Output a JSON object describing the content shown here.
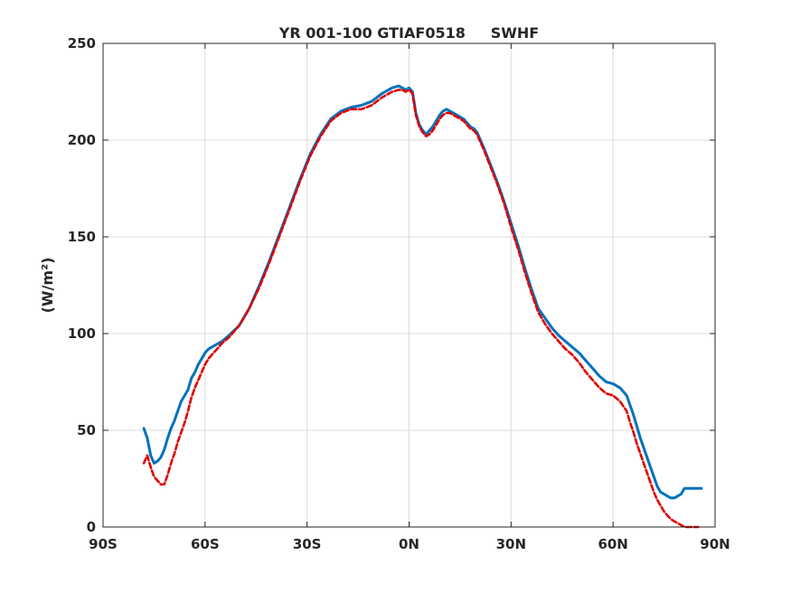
{
  "chart_data": {
    "type": "line",
    "title": "YR 001-100 GTIAF0518     SWHF",
    "xlabel": "",
    "ylabel": "(W/m²)",
    "xlim": [
      -90,
      90
    ],
    "ylim": [
      0,
      250
    ],
    "x_ticks": [
      -90,
      -60,
      -30,
      0,
      30,
      60,
      90
    ],
    "x_tick_labels": [
      "90S",
      "60S",
      "30S",
      "0N",
      "30N",
      "60N",
      "90N"
    ],
    "y_ticks": [
      0,
      50,
      100,
      150,
      200,
      250
    ],
    "y_tick_labels": [
      "0",
      "50",
      "100",
      "150",
      "200",
      "250"
    ],
    "grid": true,
    "legend": false,
    "series": [
      {
        "color": "#0072bd",
        "style": "solid",
        "x": [
          -78,
          -77,
          -76,
          -75,
          -74,
          -73,
          -72,
          -71,
          -70,
          -69,
          -68,
          -67,
          -66,
          -65,
          -64,
          -63,
          -62,
          -61,
          -60,
          -59,
          -58,
          -57,
          -56,
          -55,
          -53,
          -50,
          -47,
          -44,
          -41,
          -38,
          -35,
          -32,
          -29,
          -26,
          -23,
          -20,
          -17,
          -14,
          -11,
          -8,
          -5,
          -3,
          -2,
          -1,
          0,
          1,
          2,
          3,
          4,
          5,
          6,
          7,
          8,
          9,
          10,
          11,
          12,
          13,
          14,
          15,
          16,
          17,
          18,
          19,
          20,
          22,
          24,
          26,
          28,
          30,
          32,
          34,
          36,
          38,
          40,
          42,
          44,
          46,
          48,
          50,
          52,
          54,
          56,
          58,
          60,
          62,
          64,
          65,
          66,
          67,
          68,
          69,
          70,
          71,
          72,
          73,
          74,
          75,
          76,
          77,
          78,
          79,
          80,
          81,
          82,
          83,
          84,
          85,
          86
        ],
        "y": [
          51,
          46,
          37,
          33,
          34,
          36,
          40,
          46,
          51,
          55,
          60,
          65,
          68,
          71,
          77,
          80,
          84,
          87,
          90,
          92,
          93,
          94,
          95,
          96,
          99,
          104,
          113,
          125,
          138,
          152,
          166,
          180,
          193,
          203,
          211,
          215,
          217,
          218,
          220,
          224,
          227,
          228,
          227,
          226,
          227,
          225,
          214,
          208,
          205,
          203,
          205,
          207,
          210,
          213,
          215,
          216,
          215,
          214,
          213,
          212,
          211,
          209,
          207,
          206,
          204,
          196,
          187,
          178,
          168,
          157,
          146,
          134,
          123,
          113,
          108,
          103,
          99,
          96,
          93,
          90,
          86,
          82,
          78,
          75,
          74,
          72,
          68,
          63,
          58,
          52,
          46,
          41,
          36,
          31,
          26,
          21,
          18,
          17,
          16,
          15,
          15,
          16,
          17,
          20,
          20,
          20,
          20,
          20,
          20
        ]
      },
      {
        "color": "#e00000",
        "style": "dashed",
        "x": [
          -78,
          -77,
          -76,
          -75,
          -74,
          -73,
          -72,
          -71,
          -70,
          -69,
          -68,
          -67,
          -66,
          -65,
          -64,
          -63,
          -62,
          -61,
          -60,
          -59,
          -58,
          -57,
          -56,
          -55,
          -53,
          -50,
          -47,
          -44,
          -41,
          -38,
          -35,
          -32,
          -29,
          -26,
          -23,
          -20,
          -17,
          -14,
          -11,
          -8,
          -5,
          -3,
          -2,
          -1,
          0,
          1,
          2,
          3,
          4,
          5,
          6,
          7,
          8,
          9,
          10,
          11,
          12,
          13,
          14,
          15,
          16,
          17,
          18,
          19,
          20,
          22,
          24,
          26,
          28,
          30,
          32,
          34,
          36,
          38,
          40,
          42,
          44,
          46,
          48,
          50,
          52,
          54,
          56,
          58,
          60,
          62,
          64,
          65,
          66,
          67,
          68,
          69,
          70,
          71,
          72,
          73,
          74,
          75,
          76,
          77,
          78,
          79,
          80,
          81,
          82,
          83,
          84,
          85
        ],
        "y": [
          33,
          37,
          31,
          26,
          24,
          22,
          22,
          27,
          33,
          38,
          44,
          49,
          54,
          60,
          67,
          72,
          76,
          80,
          84,
          87,
          89,
          91,
          93,
          95,
          98,
          104,
          113,
          124,
          137,
          151,
          165,
          179,
          192,
          202,
          210,
          214,
          216,
          216,
          218,
          222,
          225,
          226,
          226,
          225,
          226,
          224,
          213,
          207,
          204,
          202,
          203,
          205,
          208,
          211,
          213,
          214,
          214,
          213,
          212,
          211,
          210,
          208,
          206,
          205,
          203,
          195,
          186,
          177,
          167,
          155,
          144,
          132,
          121,
          111,
          105,
          100,
          96,
          92,
          89,
          85,
          80,
          76,
          72,
          69,
          68,
          65,
          60,
          54,
          49,
          43,
          38,
          33,
          28,
          23,
          18,
          14,
          11,
          8,
          6,
          4,
          3,
          2,
          1,
          0,
          0,
          0,
          0,
          0
        ]
      }
    ]
  }
}
